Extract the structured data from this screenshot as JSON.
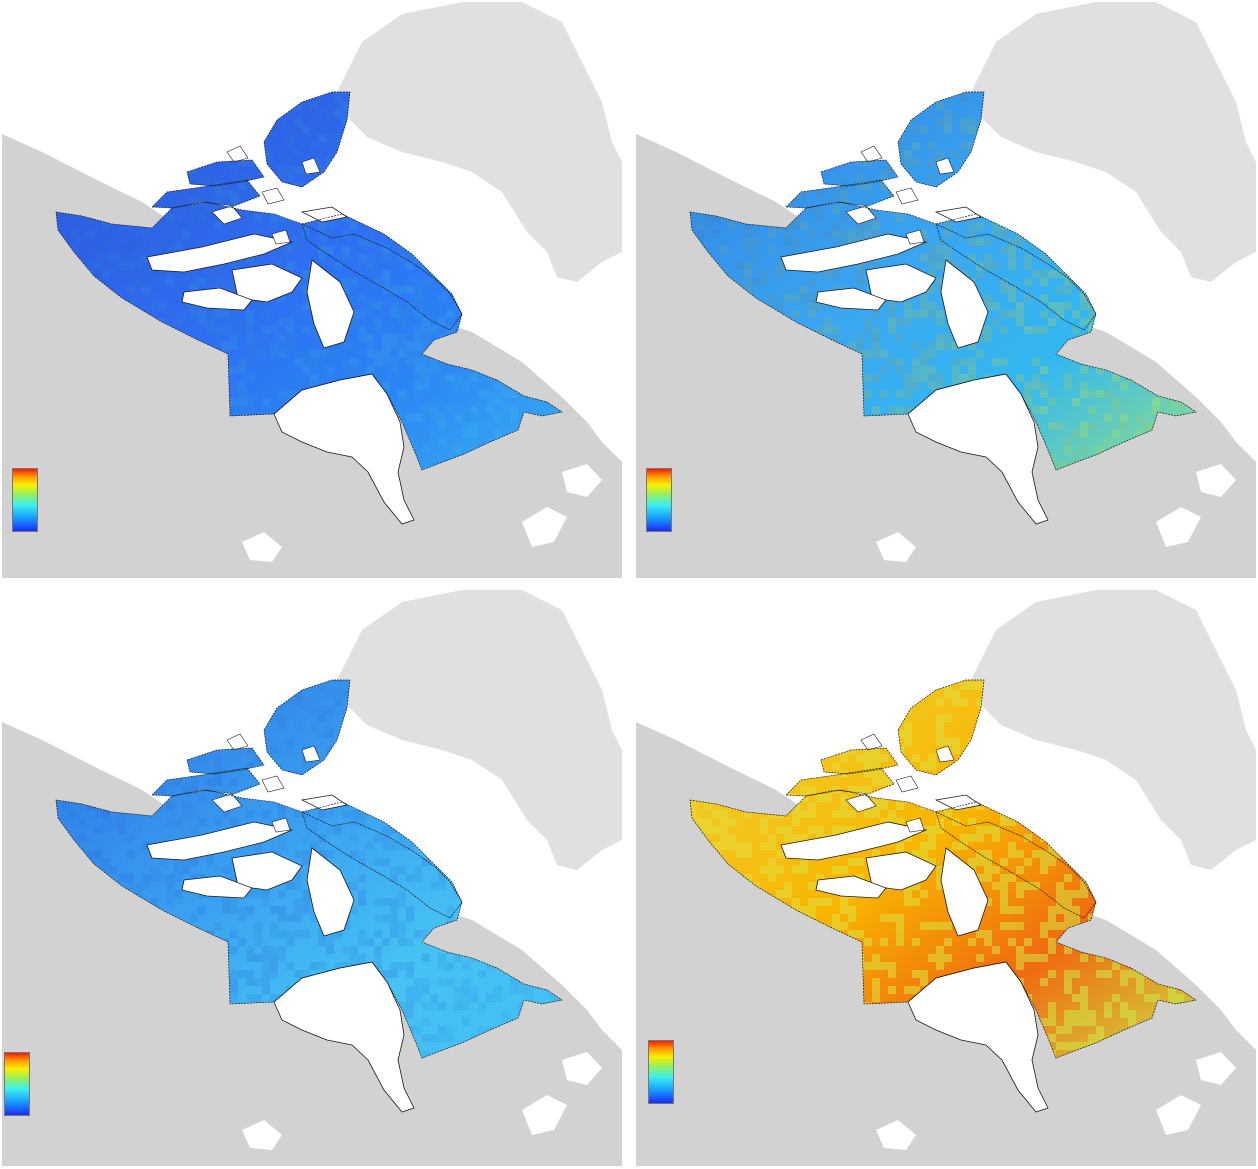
{
  "figure": {
    "layout": "2x2 map panels",
    "colors": {
      "background_land": "#d2d2d2",
      "greenland": "#e0e0e0",
      "water": "#ffffff",
      "outline": "#1a1a1a"
    },
    "panels": [
      {
        "position": "top-left",
        "colormap": "jet",
        "dominant_color": "#2f6df2",
        "mid_color": "#2a84f5",
        "east_color": "#39b4f2",
        "north_color": "#2b55d8",
        "legend": {
          "type": "colorbar",
          "labels": []
        }
      },
      {
        "position": "top-right",
        "colormap": "jet",
        "dominant_color": "#3aa6f2",
        "mid_color": "#33b8f0",
        "east_color": "#9fe57a",
        "north_color": "#2e7ee0",
        "legend": {
          "type": "colorbar",
          "labels": []
        }
      },
      {
        "position": "bottom-left",
        "colormap": "jet",
        "dominant_color": "#3aa2f2",
        "mid_color": "#46c2f2",
        "east_color": "#44bef2",
        "north_color": "#2c6fe0",
        "legend": {
          "type": "colorbar",
          "labels": []
        }
      },
      {
        "position": "bottom-right",
        "colormap": "jet",
        "dominant_color": "#f8b400",
        "mid_color": "#f06a10",
        "east_color": "#c8ec4a",
        "north_color": "#ecd83a",
        "legend": {
          "type": "colorbar",
          "labels": []
        }
      }
    ]
  }
}
